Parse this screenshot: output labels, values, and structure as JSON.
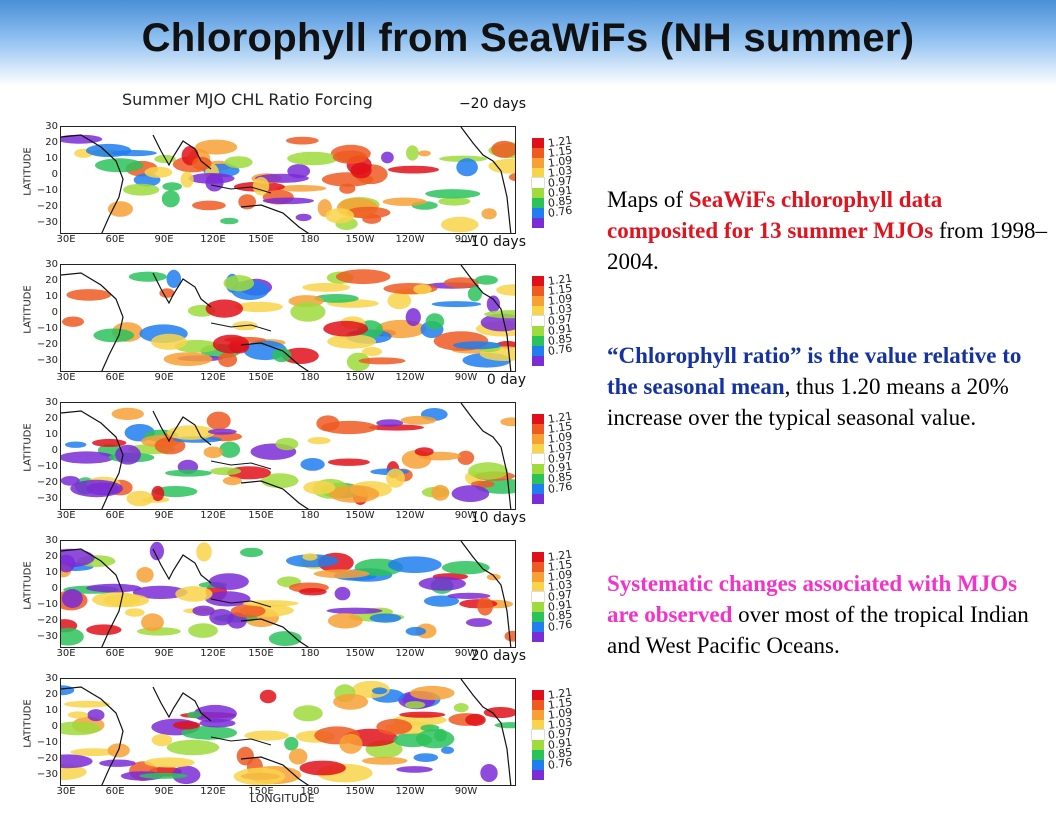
{
  "slide": {
    "title": "Chlorophyll from SeaWiFs (NH summer)"
  },
  "figure": {
    "title": "Summer MJO CHL Ratio Forcing",
    "y_axis_label": "LATITUDE",
    "x_axis_label": "LONGITUDE",
    "y_ticks": [
      "30",
      "20",
      "10",
      "0",
      "−10",
      "−20",
      "−30"
    ],
    "x_ticks": [
      "30E",
      "60E",
      "90E",
      "120E",
      "150E",
      "180",
      "150W",
      "120W",
      "90W"
    ],
    "colorbar": [
      {
        "label": "1.21",
        "color": "#e0101a"
      },
      {
        "label": "1.15",
        "color": "#ef5a22"
      },
      {
        "label": "1.09",
        "color": "#f7a035"
      },
      {
        "label": "1.03",
        "color": "#f8d44a"
      },
      {
        "label": "0.97",
        "color": "#ffffff"
      },
      {
        "label": "0.91",
        "color": "#9fdb3c"
      },
      {
        "label": "0.85",
        "color": "#2bc25a"
      },
      {
        "label": "0.76",
        "color": "#1f7ef0"
      },
      {
        "label": "",
        "color": "#7a2cd6"
      }
    ],
    "panels": [
      {
        "lag": "−20 days"
      },
      {
        "lag": "−10 days"
      },
      {
        "lag": "0 day"
      },
      {
        "lag": "10 days"
      },
      {
        "lag": "20 days"
      }
    ]
  },
  "text": {
    "p1_a": "Maps of ",
    "p1_b": "SeaWiFs chlorophyll data composited for 13 summer MJOs",
    "p1_c": " from 1998–2004.",
    "p2_a": "“Chlorophyll  ratio” is the value relative to the seasonal mean",
    "p2_b": ", thus 1.20 means a 20% increase over the typical seasonal value.",
    "p3_a": "Systematic changes associated with MJOs are observed",
    "p3_b": " over most of the tropical Indian and West Pacific Oceans."
  }
}
